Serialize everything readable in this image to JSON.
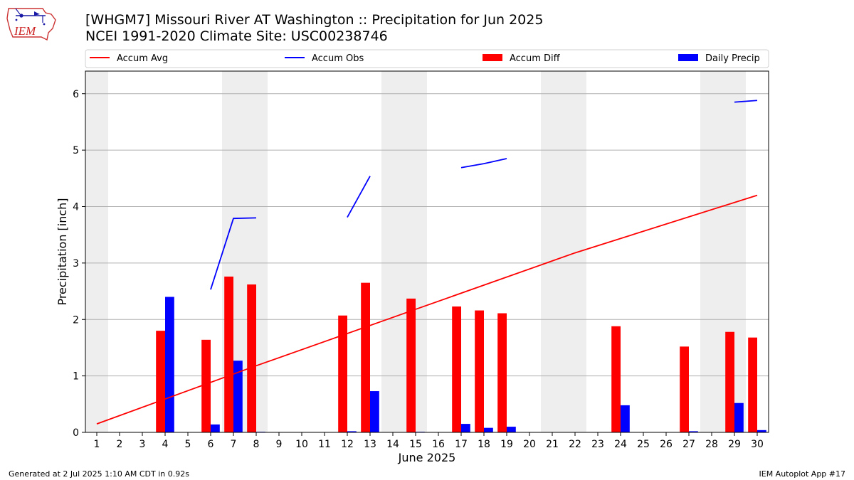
{
  "header": {
    "title_line1": "[WHGM7] Missouri River  AT Washington :: Precipitation for Jun 2025",
    "title_line2": "NCEI 1991-2020 Climate Site: USC00238746",
    "logo_text": "IEM"
  },
  "footer": {
    "left": "Generated at 2 Jul 2025 1:10 AM CDT in 0.92s",
    "right": "IEM Autoplot App #17"
  },
  "colors": {
    "accum_avg": "#ff0000",
    "accum_obs": "#0000ff",
    "accum_diff": "#ff0000",
    "daily_precip": "#0000ff",
    "weekend_band": "#eeeeee",
    "grid": "#b0b0b0"
  },
  "chart_data": {
    "type": "bar",
    "xlabel": "June 2025",
    "ylabel": "Precipitation [inch]",
    "ylim": [
      0,
      6.4
    ],
    "yticks": [
      0,
      1,
      2,
      3,
      4,
      5,
      6
    ],
    "xticks": [
      "1",
      "2",
      "3",
      "4",
      "5",
      "6",
      "7",
      "8",
      "9",
      "10",
      "11",
      "12",
      "13",
      "14",
      "15",
      "16",
      "17",
      "18",
      "19",
      "20",
      "21",
      "22",
      "23",
      "24",
      "25",
      "26",
      "27",
      "28",
      "29",
      "30"
    ],
    "grid": "horizontal",
    "legend_position": "top",
    "shaded_weekend_days": [
      1,
      7,
      8,
      14,
      15,
      21,
      22,
      28,
      29
    ],
    "legend": [
      "Accum Avg",
      "Accum Obs",
      "Accum Diff",
      "Daily Precip"
    ],
    "series": [
      {
        "name": "Accum Avg",
        "kind": "line",
        "points": [
          [
            1,
            0.15
          ],
          [
            8,
            1.18
          ],
          [
            15,
            2.18
          ],
          [
            22,
            3.18
          ],
          [
            30,
            4.2
          ]
        ]
      },
      {
        "name": "Accum Obs",
        "kind": "line",
        "segments": [
          [
            [
              6,
              2.53
            ],
            [
              7,
              3.79
            ],
            [
              8,
              3.8
            ]
          ],
          [
            [
              12,
              3.81
            ],
            [
              13,
              4.54
            ]
          ],
          [
            [
              17,
              4.69
            ],
            [
              18,
              4.76
            ],
            [
              19,
              4.85
            ]
          ],
          [
            [
              29,
              5.85
            ],
            [
              30,
              5.88
            ]
          ]
        ]
      },
      {
        "name": "Accum Diff",
        "kind": "bar",
        "days": [
          4,
          6,
          7,
          8,
          12,
          13,
          15,
          17,
          18,
          19,
          24,
          27,
          29,
          30
        ],
        "values": [
          1.8,
          1.64,
          2.76,
          2.62,
          2.07,
          2.65,
          2.37,
          2.23,
          2.16,
          2.11,
          1.88,
          1.52,
          1.78,
          1.68
        ]
      },
      {
        "name": "Daily Precip",
        "kind": "bar",
        "days": [
          4,
          6,
          7,
          8,
          12,
          13,
          15,
          17,
          18,
          19,
          24,
          27,
          29,
          30
        ],
        "values": [
          2.4,
          0.14,
          1.27,
          0.01,
          0.02,
          0.73,
          0.01,
          0.15,
          0.08,
          0.1,
          0.48,
          0.02,
          0.52,
          0.04
        ]
      }
    ]
  }
}
